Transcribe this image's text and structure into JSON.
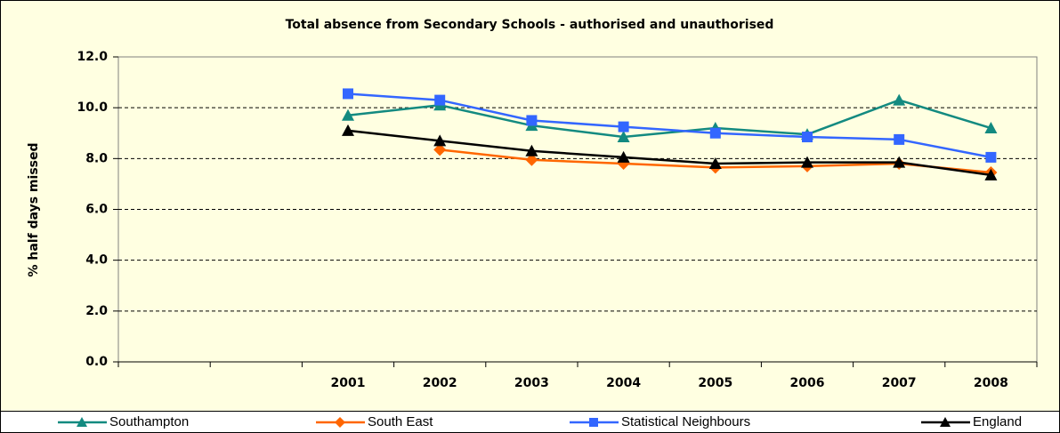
{
  "chart_data": {
    "type": "line",
    "title": "Total absence from Secondary Schools - authorised and unauthorised",
    "y_label": "% half days missed",
    "categories": [
      null,
      null,
      "2001",
      "2002",
      "2003",
      "2004",
      "2005",
      "2006",
      "2007",
      "2008"
    ],
    "series": [
      {
        "name": "Southampton",
        "color": "#138a80",
        "marker": "triangle",
        "values": [
          null,
          null,
          9.7,
          10.1,
          9.3,
          8.85,
          9.2,
          8.95,
          10.3,
          9.2
        ]
      },
      {
        "name": "South East",
        "color": "#ff6600",
        "marker": "diamond",
        "values": [
          null,
          null,
          null,
          8.35,
          7.95,
          7.8,
          7.65,
          7.7,
          7.8,
          7.45
        ]
      },
      {
        "name": "Statistical Neighbours",
        "color": "#3366ff",
        "marker": "square",
        "values": [
          null,
          null,
          10.55,
          10.3,
          9.5,
          9.25,
          9.0,
          8.85,
          8.75,
          8.05
        ]
      },
      {
        "name": "England",
        "color": "#000000",
        "marker": "triangle",
        "values": [
          null,
          null,
          9.1,
          8.7,
          8.3,
          8.05,
          7.8,
          7.85,
          7.85,
          7.35
        ]
      }
    ],
    "ylim": [
      0,
      12
    ],
    "yticks": [
      {
        "value": 0,
        "label": "0.0"
      },
      {
        "value": 2,
        "label": "2.0"
      },
      {
        "value": 4,
        "label": "4.0"
      },
      {
        "value": 6,
        "label": "6.0"
      },
      {
        "value": 8,
        "label": "8.0"
      },
      {
        "value": 10,
        "label": "10.0"
      },
      {
        "value": 12,
        "label": "12.0"
      }
    ],
    "grid": true,
    "legend": "bottom"
  }
}
